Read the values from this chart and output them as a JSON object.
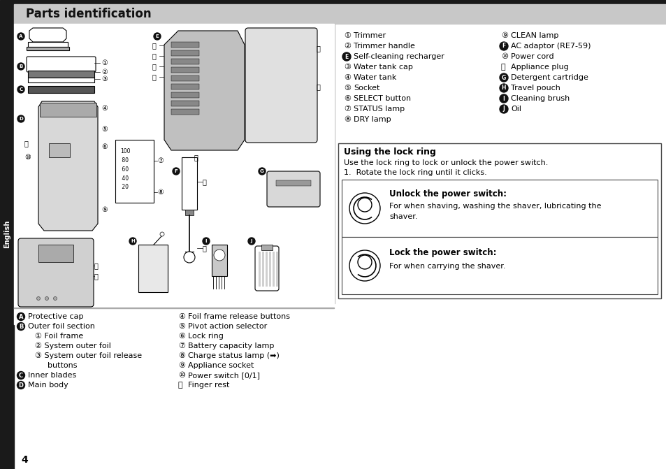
{
  "title": "Parts identification",
  "title_bg": "#c0c0c0",
  "page_bg": "#ffffff",
  "page_number": "4",
  "sidebar_text": "English",
  "col1_items": [
    {
      "type": "num",
      "num": "①",
      "text": "Trimmer"
    },
    {
      "type": "num",
      "num": "②",
      "text": "Trimmer handle"
    },
    {
      "type": "letter",
      "letter": "E",
      "text": "Self-cleaning recharger"
    },
    {
      "type": "num",
      "num": "③",
      "text": "Water tank cap"
    },
    {
      "type": "num",
      "num": "④",
      "text": "Water tank"
    },
    {
      "type": "num",
      "num": "⑤",
      "text": "Socket"
    },
    {
      "type": "num",
      "num": "⑥",
      "text": "SELECT button"
    },
    {
      "type": "num",
      "num": "⑦",
      "text": "STATUS lamp"
    },
    {
      "type": "num",
      "num": "⑧",
      "text": "DRY lamp"
    }
  ],
  "col2_items": [
    {
      "type": "num",
      "num": "⑨",
      "text": "CLEAN lamp"
    },
    {
      "type": "letter",
      "letter": "F",
      "text": "AC adaptor (RE7-59)"
    },
    {
      "type": "num",
      "num": "⑩",
      "text": "Power cord"
    },
    {
      "type": "num",
      "num": "⑪",
      "text": "Appliance plug"
    },
    {
      "type": "letter",
      "letter": "G",
      "text": "Detergent cartridge"
    },
    {
      "type": "letter",
      "letter": "H",
      "text": "Travel pouch"
    },
    {
      "type": "letter",
      "letter": "I",
      "text": "Cleaning brush"
    },
    {
      "type": "letter",
      "letter": "J",
      "text": "Oil"
    }
  ],
  "bottom_left_items": [
    {
      "type": "letter",
      "letter": "A",
      "text": "Protective cap"
    },
    {
      "type": "letter",
      "letter": "B",
      "text": "Outer foil section"
    },
    {
      "type": "sub",
      "num": "①",
      "text": "Foil frame"
    },
    {
      "type": "sub",
      "num": "②",
      "text": "System outer foil"
    },
    {
      "type": "sub2",
      "num": "③",
      "text": "System outer foil release"
    },
    {
      "type": "sub3",
      "text": "buttons"
    },
    {
      "type": "letter",
      "letter": "C",
      "text": "Inner blades"
    },
    {
      "type": "letter",
      "letter": "D",
      "text": "Main body"
    }
  ],
  "bottom_right_items": [
    {
      "type": "num",
      "num": "④",
      "text": "Foil frame release buttons"
    },
    {
      "type": "num",
      "num": "⑤",
      "text": "Pivot action selector"
    },
    {
      "type": "num",
      "num": "⑥",
      "text": "Lock ring"
    },
    {
      "type": "num",
      "num": "⑦",
      "text": "Battery capacity lamp"
    },
    {
      "type": "num",
      "num": "⑧",
      "text": "Charge status lamp (➡)"
    },
    {
      "type": "num",
      "num": "⑨",
      "text": "Appliance socket"
    },
    {
      "type": "num",
      "num": "⑩",
      "text": "Power switch [0/1]"
    },
    {
      "type": "num",
      "num": "⑪",
      "text": "Finger rest"
    }
  ],
  "lock_ring_title": "Using the lock ring",
  "lock_ring_line1": "Use the lock ring to lock or unlock the power switch.",
  "lock_ring_line2": "1.  Rotate the lock ring until it clicks.",
  "unlock_title": "Unlock the power switch:",
  "unlock_line1": "For when shaving, washing the shaver, lubricating the",
  "unlock_line2": "shaver.",
  "lock_title": "Lock the power switch:",
  "lock_line1": "For when carrying the shaver."
}
